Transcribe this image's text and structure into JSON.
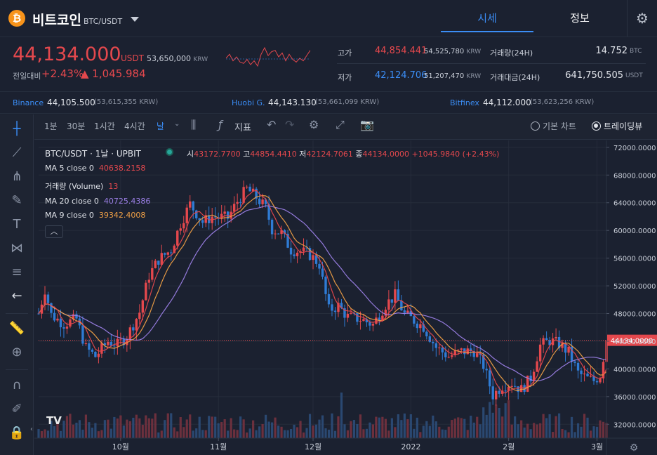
{
  "header": {
    "coin_name": "비트코인",
    "pair": "BTC/USDT",
    "coin_symbol": "₿",
    "tabs": {
      "quote": "시세",
      "info": "정보"
    }
  },
  "price": {
    "main": "44,134.000",
    "unit": "USDT",
    "krw": "53,650,000",
    "krw_unit": "KRW",
    "change_label": "전일대비",
    "change_pct": "+2.43%",
    "change_amt": "▲ 1,045.984"
  },
  "stats": {
    "high_label": "고가",
    "high_val": "44,854.441",
    "high_krw": "54,525,780",
    "low_label": "저가",
    "low_val": "42,124.706",
    "low_krw": "51,207,470",
    "krw_unit": "KRW",
    "volume_label": "거래량(24H)",
    "volume_val": "14.752",
    "volume_unit": "BTC",
    "amount_label": "거래대금(24H)",
    "amount_val": "641,750.505",
    "amount_unit": "USDT"
  },
  "exchanges": [
    {
      "name": "Binance",
      "price": "44,105.500",
      "krw": "(53,615,355 KRW)"
    },
    {
      "name": "Huobi G.",
      "price": "44,143.130",
      "krw": "(53,661,099 KRW)"
    },
    {
      "name": "Bitfinex",
      "price": "44,112.000",
      "krw": "(53,623,256 KRW)"
    }
  ],
  "toolbar": {
    "timeframes": [
      "1분",
      "30분",
      "1시간",
      "4시간",
      "날"
    ],
    "indicator_label": "지표",
    "basic_chart_label": "기본 차트",
    "tradingview_label": "트레이딩뷰"
  },
  "chart_legend": {
    "symbol": "BTC/USDT",
    "interval": "1날",
    "exchange": "UPBIT",
    "open_label": "시",
    "open": "43172.7700",
    "high_label": "고",
    "high": "44854.4410",
    "low_label": "저",
    "low": "42124.7061",
    "close_label": "종",
    "close": "44134.0000",
    "change": "+1045.9840 (+2.43%)",
    "ma5_label": "MA 5 close 0",
    "ma5_val": "40638.2158",
    "vol_label": "거래량 (Volume)",
    "vol_val": "13",
    "ma20_label": "MA 20 close 0",
    "ma20_val": "40725.4386",
    "ma9_label": "MA 9 close 0",
    "ma9_val": "39342.4008",
    "watermark": "TV"
  },
  "chart_data": {
    "type": "candlestick",
    "title": "BTC/USDT 1날 UPBIT",
    "ylim": [
      30000,
      73000
    ],
    "y_ticks": [
      "72000.0000",
      "68000.0000",
      "64000.0000",
      "60000.0000",
      "56000.0000",
      "52000.0000",
      "48000.0000",
      "44000.0000",
      "40000.0000",
      "36000.0000",
      "32000.0000"
    ],
    "y_tick_values": [
      72000,
      68000,
      64000,
      60000,
      56000,
      52000,
      48000,
      44000,
      40000,
      36000,
      32000
    ],
    "x_labels": [
      "10월",
      "11월",
      "12월",
      "2022",
      "2월",
      "3월"
    ],
    "x_label_days": [
      26,
      57,
      87,
      118,
      149,
      177
    ],
    "days_total": 180,
    "last_price_label": "44134.0000",
    "last_price": 44134,
    "close_anchors": [
      [
        0,
        48000
      ],
      [
        2,
        51500
      ],
      [
        4,
        47800
      ],
      [
        8,
        46500
      ],
      [
        12,
        47200
      ],
      [
        15,
        43000
      ],
      [
        18,
        41800
      ],
      [
        22,
        44000
      ],
      [
        25,
        43500
      ],
      [
        28,
        44700
      ],
      [
        32,
        48200
      ],
      [
        35,
        53500
      ],
      [
        38,
        55800
      ],
      [
        42,
        57200
      ],
      [
        45,
        61000
      ],
      [
        48,
        63800
      ],
      [
        52,
        61200
      ],
      [
        55,
        62000
      ],
      [
        60,
        61800
      ],
      [
        63,
        64200
      ],
      [
        66,
        66000
      ],
      [
        69,
        64800
      ],
      [
        72,
        63200
      ],
      [
        74,
        60200
      ],
      [
        77,
        59600
      ],
      [
        80,
        57200
      ],
      [
        83,
        57000
      ],
      [
        86,
        56500
      ],
      [
        89,
        55100
      ],
      [
        90,
        52800
      ],
      [
        92,
        48500
      ],
      [
        95,
        49100
      ],
      [
        98,
        47500
      ],
      [
        102,
        47200
      ],
      [
        106,
        46400
      ],
      [
        110,
        49300
      ],
      [
        113,
        50600
      ],
      [
        116,
        47900
      ],
      [
        119,
        47000
      ],
      [
        122,
        46100
      ],
      [
        126,
        43100
      ],
      [
        130,
        41800
      ],
      [
        134,
        42500
      ],
      [
        138,
        42600
      ],
      [
        141,
        40500
      ],
      [
        144,
        36200
      ],
      [
        147,
        37600
      ],
      [
        150,
        38000
      ],
      [
        153,
        37000
      ],
      [
        156,
        38700
      ],
      [
        159,
        43400
      ],
      [
        162,
        44100
      ],
      [
        165,
        43600
      ],
      [
        168,
        42400
      ],
      [
        171,
        39400
      ],
      [
        174,
        38600
      ],
      [
        176,
        38300
      ],
      [
        178,
        39100
      ],
      [
        180,
        44134
      ]
    ],
    "sparkline": [
      52,
      55,
      50,
      53,
      49,
      48,
      51,
      47,
      50,
      46,
      55,
      60,
      54,
      57,
      58,
      53,
      56,
      50,
      55,
      51,
      49,
      52,
      50,
      54,
      58
    ]
  },
  "colors": {
    "up": "#e4484d",
    "down": "#2f7bd4",
    "ma5": "#e4484d",
    "ma9": "#f0a046",
    "ma20": "#9b7fe6",
    "accent": "#3b8df5",
    "bg": "#1b2130"
  }
}
